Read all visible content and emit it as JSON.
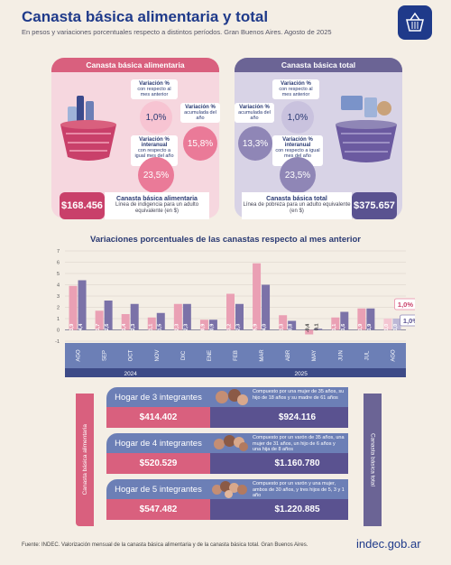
{
  "header": {
    "title": "Canasta básica alimentaria y total",
    "subtitle": "En pesos y variaciones porcentuales respecto a distintos períodos. Gran Buenos Aires. Agosto de 2025"
  },
  "cba": {
    "title": "Canasta básica alimentaria",
    "var_month_label": "Variación %",
    "var_month_sub": "con respecto al mes anterior",
    "var_month_value": "1,0%",
    "var_acum_label": "Variación %",
    "var_acum_sub": "acumulada del año",
    "var_acum_value": "15,8%",
    "var_inter_label": "Variación % interanual",
    "var_inter_sub": "con respecto a igual mes del año anterior",
    "var_inter_value": "23,5%",
    "amount": "$168.456",
    "amount_title": "Canasta básica alimentaria",
    "amount_sub": "Línea de indigencia para un adulto equivalente (en $)"
  },
  "cbt": {
    "title": "Canasta básica total",
    "var_month_label": "Variación %",
    "var_month_sub": "con respecto al mes anterior",
    "var_month_value": "1,0%",
    "var_acum_label": "Variación %",
    "var_acum_sub": "acumulada del año",
    "var_acum_value": "13,3%",
    "var_inter_label": "Variación % interanual",
    "var_inter_sub": "con respecto a igual mes del año anterior",
    "var_inter_value": "23,5%",
    "amount": "$375.657",
    "amount_title": "Canasta básica total",
    "amount_sub": "Línea de pobreza para un adulto equivalente (en $)"
  },
  "chart_data": {
    "type": "bar",
    "title": "Variaciones porcentuales de las canastas respecto al mes anterior",
    "categories": [
      "AGO",
      "SEP",
      "OCT",
      "NOV",
      "DIC",
      "ENE",
      "FEB",
      "MAR",
      "ABR",
      "MAY",
      "JUN",
      "JUL",
      "AGO"
    ],
    "years": [
      {
        "label": "2024"
      },
      {
        "label": "2025"
      }
    ],
    "series": [
      {
        "name": "Canasta básica alimentaria",
        "values": [
          3.9,
          1.7,
          1.4,
          1.1,
          2.3,
          0.9,
          3.2,
          5.9,
          1.3,
          -0.4,
          1.1,
          1.9,
          1.0
        ]
      },
      {
        "name": "Canasta básica total",
        "values": [
          4.4,
          2.6,
          2.3,
          1.5,
          2.3,
          0.9,
          2.3,
          4.0,
          0.8,
          0.1,
          1.6,
          1.9,
          1.0
        ]
      }
    ],
    "callouts": [
      "1,0%",
      "1,0%"
    ],
    "ylim": [
      -1,
      7
    ],
    "yticks": [
      "7",
      "6",
      "5",
      "4",
      "3",
      "2",
      "1",
      "0",
      "-1"
    ],
    "colors": {
      "cba": "#eaa0b4",
      "cbt": "#7b72a8",
      "highlight_cba": "#f4c6d2",
      "highlight_cbt": "#bdb8d6"
    }
  },
  "hogares": [
    {
      "name": "Hogar de 3 integrantes",
      "cba": "$414.402",
      "description": "Compuesto por una mujer de 35 años, su hijo de 18 años y su madre de 61 años",
      "cbt": "$924.116"
    },
    {
      "name": "Hogar de 4 integrantes",
      "cba": "$520.529",
      "description": "Compuesto por un varón de 35 años, una mujer de 31 años, un hijo de 6 años y una hija de 8 años",
      "cbt": "$1.160.780"
    },
    {
      "name": "Hogar de 5 integrantes",
      "cba": "$547.482",
      "description": "Compuesto por un varón y una mujer, ambos de 30 años, y tres hijos de 5, 3 y 1 año",
      "cbt": "$1.220.885"
    }
  ],
  "side_labels": {
    "cba": "Canasta básica alimentaria",
    "cbt": "Canasta básica total"
  },
  "footer": {
    "source": "Fuente: INDEC. Valorización mensual de la canasta básica alimentaria y de la canasta básica total. Gran Buenos Aires.",
    "brand": "indec.gob.ar"
  }
}
